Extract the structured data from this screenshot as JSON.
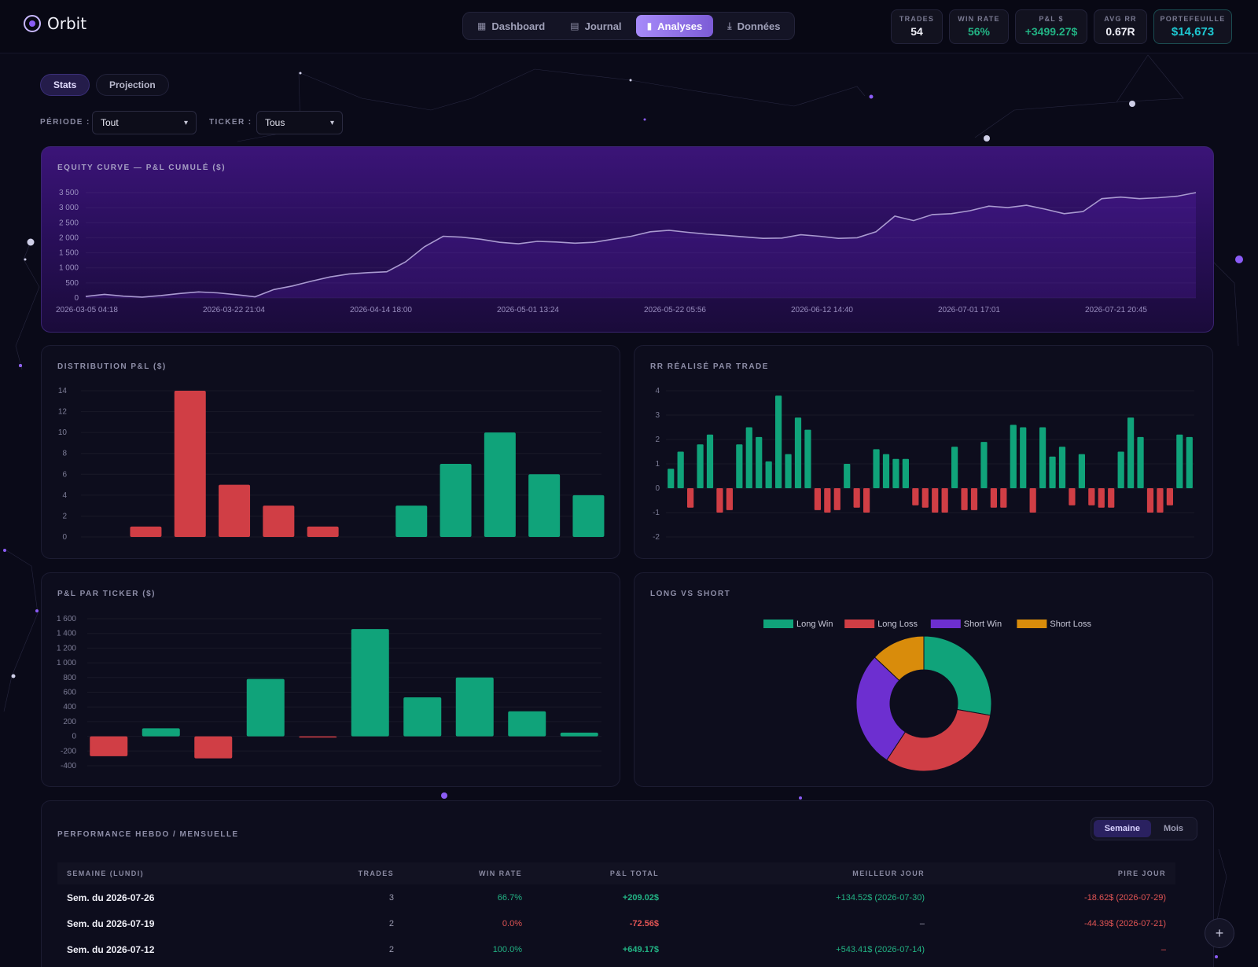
{
  "app": {
    "name": "Orbit"
  },
  "nav": {
    "items": [
      {
        "label": "Dashboard",
        "icon": "grid-icon"
      },
      {
        "label": "Journal",
        "icon": "book-icon"
      },
      {
        "label": "Analyses",
        "icon": "bar-chart-icon",
        "active": true
      },
      {
        "label": "Données",
        "icon": "download-icon"
      }
    ]
  },
  "stats": {
    "trades": {
      "label": "TRADES",
      "value": "54"
    },
    "winrate": {
      "label": "WIN RATE",
      "value": "56%"
    },
    "pnl": {
      "label": "P&L $",
      "value": "+3499.27$"
    },
    "avgrr": {
      "label": "AVG RR",
      "value": "0.67R"
    },
    "portfolio": {
      "label": "PORTEFEUILLE",
      "value": "$14,673"
    }
  },
  "tabs": {
    "stats": "Stats",
    "projection": "Projection"
  },
  "filters": {
    "period_label": "PÉRIODE :",
    "period_value": "Tout",
    "ticker_label": "TICKER :",
    "ticker_value": "Tous"
  },
  "colors": {
    "accent": "#8b5cf6",
    "green": "#10a37a",
    "red": "#d03e45",
    "purple": "#6d2fd0",
    "orange": "#d98c0b"
  },
  "charts": {
    "equity_title": "EQUITY CURVE — P&L CUMULÉ ($)",
    "distribution_title": "DISTRIBUTION P&L ($)",
    "rr_title": "RR RÉALISÉ PAR TRADE",
    "ticker_title": "P&L PAR TICKER ($)",
    "longshort_title": "LONG VS SHORT"
  },
  "chart_data": [
    {
      "id": "equity",
      "type": "line",
      "title": "EQUITY CURVE — P&L CUMULÉ ($)",
      "y_ticks": [
        "3 500",
        "3 000",
        "2 500",
        "2 000",
        "1 500",
        "1 000",
        "500",
        "0"
      ],
      "x_ticks": [
        "2026-03-05 04:18",
        "2026-03-22 21:04",
        "2026-04-14 18:00",
        "2026-05-01 13:24",
        "2026-05-22 05:56",
        "2026-06-12 14:40",
        "2026-07-01 17:01",
        "2026-07-21 20:45"
      ],
      "ylim": [
        0,
        3500
      ],
      "values": [
        50,
        120,
        60,
        30,
        80,
        150,
        200,
        170,
        110,
        40,
        280,
        400,
        560,
        700,
        800,
        840,
        870,
        1200,
        1700,
        2050,
        2020,
        1950,
        1850,
        1800,
        1880,
        1860,
        1820,
        1850,
        1950,
        2050,
        2200,
        2250,
        2180,
        2120,
        2080,
        2030,
        1980,
        1990,
        2100,
        2050,
        1980,
        2000,
        2200,
        2720,
        2570,
        2770,
        2800,
        2900,
        3050,
        3000,
        3080,
        2950,
        2800,
        2870,
        3300,
        3350,
        3300,
        3330,
        3380,
        3500
      ]
    },
    {
      "id": "distribution",
      "type": "bar",
      "title": "DISTRIBUTION P&L ($)",
      "y_ticks": [
        "14",
        "12",
        "10",
        "8",
        "6",
        "4",
        "2",
        "0"
      ],
      "ylim": [
        0,
        14
      ],
      "values": [
        0,
        1,
        14,
        5,
        3,
        1,
        0,
        3,
        7,
        10,
        6,
        4
      ],
      "colors": [
        "red",
        "red",
        "red",
        "red",
        "red",
        "red",
        "green",
        "green",
        "green",
        "green",
        "green",
        "green"
      ]
    },
    {
      "id": "rr",
      "type": "bar",
      "title": "RR RÉALISÉ PAR TRADE",
      "y_ticks": [
        "4",
        "3",
        "2",
        "1",
        "0",
        "-1",
        "-2"
      ],
      "ylim": [
        -2,
        4
      ],
      "values": [
        0.8,
        1.5,
        -0.8,
        1.8,
        2.2,
        -1,
        -0.9,
        1.8,
        2.5,
        2.1,
        1.1,
        3.8,
        1.4,
        2.9,
        2.4,
        -0.9,
        -1,
        -0.9,
        1,
        -0.8,
        -1,
        1.6,
        1.4,
        1.2,
        1.2,
        -0.7,
        -0.8,
        -1,
        -1,
        1.7,
        -0.9,
        -0.9,
        1.9,
        -0.8,
        -0.8,
        2.6,
        2.5,
        -1,
        2.5,
        1.3,
        1.7,
        -0.7,
        1.4,
        -0.7,
        -0.8,
        -0.8,
        1.5,
        2.9,
        2.1,
        -1,
        -1,
        -0.7,
        2.2,
        2.1
      ]
    },
    {
      "id": "ticker",
      "type": "bar",
      "title": "P&L PAR TICKER ($)",
      "y_ticks": [
        "1 600",
        "1 400",
        "1 200",
        "1 000",
        "800",
        "600",
        "400",
        "200",
        "0",
        "-200",
        "-400"
      ],
      "ylim": [
        -400,
        1600
      ],
      "values": [
        -270,
        110,
        -300,
        780,
        -10,
        1460,
        530,
        800,
        340,
        50
      ]
    },
    {
      "id": "longshort",
      "type": "pie",
      "title": "LONG VS SHORT",
      "legend": [
        {
          "name": "Long Win",
          "color": "#10a37a",
          "value": 15
        },
        {
          "name": "Long Loss",
          "color": "#d03e45",
          "value": 17
        },
        {
          "name": "Short Win",
          "color": "#6d2fd0",
          "value": 15
        },
        {
          "name": "Short Loss",
          "color": "#d98c0b",
          "value": 7
        }
      ]
    }
  ],
  "table": {
    "title": "PERFORMANCE HEBDO / MENSUELLE",
    "toggle": {
      "week": "Semaine",
      "month": "Mois"
    },
    "headers": [
      "SEMAINE (LUNDI)",
      "TRADES",
      "WIN RATE",
      "P&L TOTAL",
      "MEILLEUR JOUR",
      "PIRE JOUR"
    ],
    "rows": [
      {
        "week": "Sem. du 2026-07-26",
        "trades": "3",
        "winrate": "66.7%",
        "pnl": "+209.02$",
        "best": "+134.52$ (2026-07-30)",
        "worst": "-18.62$ (2026-07-29)"
      },
      {
        "week": "Sem. du 2026-07-19",
        "trades": "2",
        "winrate": "0.0%",
        "pnl": "-72.56$",
        "best": "–",
        "worst": "-44.39$ (2026-07-21)"
      },
      {
        "week": "Sem. du 2026-07-12",
        "trades": "2",
        "winrate": "100.0%",
        "pnl": "+649.17$",
        "best": "+543.41$ (2026-07-14)",
        "worst": "–"
      }
    ]
  },
  "fab": "+"
}
